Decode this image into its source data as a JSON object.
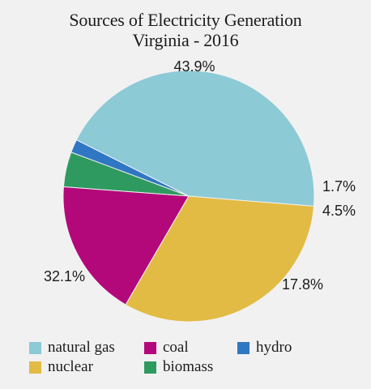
{
  "chart_data": {
    "type": "pie",
    "title": "Sources of Electricity Generation",
    "subtitle": "Virginia - 2016",
    "slices": [
      {
        "name": "natural gas",
        "value": 43.9,
        "label": "43.9%",
        "color": "#8ccad6"
      },
      {
        "name": "hydro",
        "value": 1.7,
        "label": "1.7%",
        "color": "#2f77c2"
      },
      {
        "name": "biomass",
        "value": 4.5,
        "label": "4.5%",
        "color": "#2f9a60"
      },
      {
        "name": "coal",
        "value": 17.8,
        "label": "17.8%",
        "color": "#b3087a"
      },
      {
        "name": "nuclear",
        "value": 32.1,
        "label": "32.1%",
        "color": "#e2bb44"
      }
    ],
    "legend": [
      {
        "name": "natural gas",
        "color": "#8ccad6"
      },
      {
        "name": "coal",
        "color": "#b3087a"
      },
      {
        "name": "hydro",
        "color": "#2f77c2"
      },
      {
        "name": "nuclear",
        "color": "#e2bb44"
      },
      {
        "name": "biomass",
        "color": "#2f9a60"
      }
    ],
    "legend_placement": "bottom"
  }
}
